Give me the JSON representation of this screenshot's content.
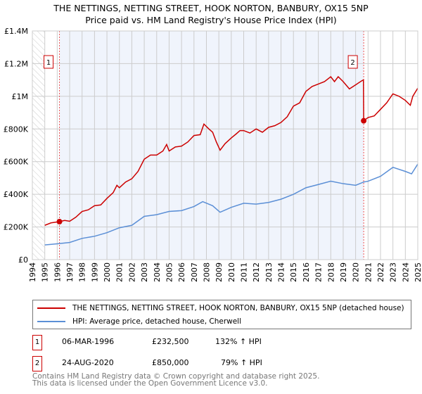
{
  "chart_data": {
    "type": "line",
    "title": "THE NETTINGS, NETTING STREET, HOOK NORTON, BANBURY, OX15 5NP",
    "subtitle": "Price paid vs. HM Land Registry's House Price Index (HPI)",
    "xlim": [
      1994,
      2025
    ],
    "ylim": [
      0,
      1400000
    ],
    "x_ticks": [
      "1994",
      "1995",
      "1996",
      "1997",
      "1998",
      "1999",
      "2000",
      "2001",
      "2002",
      "2003",
      "2004",
      "2005",
      "2006",
      "2007",
      "2008",
      "2009",
      "2010",
      "2011",
      "2012",
      "2013",
      "2014",
      "2015",
      "2016",
      "2017",
      "2018",
      "2019",
      "2020",
      "2021",
      "2022",
      "2023",
      "2024",
      "2025"
    ],
    "y_ticks": [
      {
        "v": 0,
        "label": "£0"
      },
      {
        "v": 200000,
        "label": "£200K"
      },
      {
        "v": 400000,
        "label": "£400K"
      },
      {
        "v": 600000,
        "label": "£600K"
      },
      {
        "v": 800000,
        "label": "£800K"
      },
      {
        "v": 1000000,
        "label": "£1M"
      },
      {
        "v": 1200000,
        "label": "£1.2M"
      },
      {
        "v": 1400000,
        "label": "£1.4M"
      }
    ],
    "series": [
      {
        "name": "THE NETTINGS, NETTING STREET, HOOK NORTON, BANBURY, OX15 5NP (detached house)",
        "color": "#cc0000",
        "x": [
          1995,
          1995.5,
          1996.18,
          1996.6,
          1997,
          1997.5,
          1998,
          1998.5,
          1999,
          1999.5,
          2000,
          2000.5,
          2000.8,
          2001,
          2001.5,
          2002,
          2002.5,
          2003,
          2003.5,
          2004,
          2004.5,
          2004.8,
          2005,
          2005.5,
          2006,
          2006.5,
          2007,
          2007.5,
          2007.8,
          2008.2,
          2008.5,
          2008.8,
          2009.1,
          2009.5,
          2010,
          2010.4,
          2010.7,
          2011,
          2011.5,
          2012,
          2012.5,
          2013,
          2013.5,
          2014,
          2014.5,
          2015,
          2015.5,
          2016,
          2016.5,
          2017,
          2017.5,
          2018,
          2018.3,
          2018.6,
          2019,
          2019.5,
          2020,
          2020.5,
          2020.63,
          2020.65,
          2021,
          2021.5,
          2022,
          2022.5,
          2023,
          2023.5,
          2024,
          2024.4,
          2024.6,
          2025
        ],
        "y": [
          210000,
          225000,
          232500,
          240000,
          235000,
          260000,
          295000,
          305000,
          330000,
          335000,
          375000,
          410000,
          455000,
          440000,
          475000,
          495000,
          540000,
          615000,
          640000,
          640000,
          665000,
          705000,
          665000,
          690000,
          695000,
          720000,
          760000,
          765000,
          830000,
          800000,
          780000,
          720000,
          670000,
          710000,
          745000,
          770000,
          790000,
          790000,
          775000,
          800000,
          780000,
          810000,
          820000,
          840000,
          875000,
          940000,
          960000,
          1030000,
          1060000,
          1075000,
          1090000,
          1120000,
          1090000,
          1120000,
          1090000,
          1045000,
          1070000,
          1095000,
          1100000,
          850000,
          870000,
          880000,
          920000,
          960000,
          1015000,
          1000000,
          975000,
          945000,
          1000000,
          1050000
        ]
      },
      {
        "name": "HPI: Average price, detached house, Cherwell",
        "color": "#5b8fd6",
        "x": [
          1995,
          1996,
          1997,
          1998,
          1999,
          2000,
          2001,
          2002,
          2003,
          2004,
          2005,
          2006,
          2007,
          2007.7,
          2008.5,
          2009.1,
          2010,
          2011,
          2012,
          2013,
          2014,
          2015,
          2016,
          2017,
          2018,
          2019,
          2020,
          2020.65,
          2021,
          2022,
          2023,
          2024,
          2024.5,
          2025
        ],
        "y": [
          90000,
          97000,
          105000,
          130000,
          143000,
          165000,
          195000,
          210000,
          265000,
          275000,
          295000,
          300000,
          325000,
          355000,
          330000,
          290000,
          320000,
          345000,
          340000,
          350000,
          370000,
          400000,
          440000,
          460000,
          480000,
          465000,
          455000,
          475000,
          480000,
          510000,
          565000,
          540000,
          525000,
          585000
        ]
      }
    ],
    "sales": [
      {
        "label": "1",
        "x": 1996.18,
        "y": 232500
      },
      {
        "label": "2",
        "x": 2020.65,
        "y": 850000
      }
    ],
    "legend_placement": "bottom"
  },
  "sales_table": [
    {
      "num": "1",
      "date": "06-MAR-1996",
      "price": "£232,500",
      "hpi": "132% ↑ HPI"
    },
    {
      "num": "2",
      "date": "24-AUG-2020",
      "price": "£850,000",
      "hpi": "79% ↑ HPI"
    }
  ],
  "footer": [
    "Contains HM Land Registry data © Crown copyright and database right 2025.",
    "This data is licensed under the Open Government Licence v3.0."
  ]
}
